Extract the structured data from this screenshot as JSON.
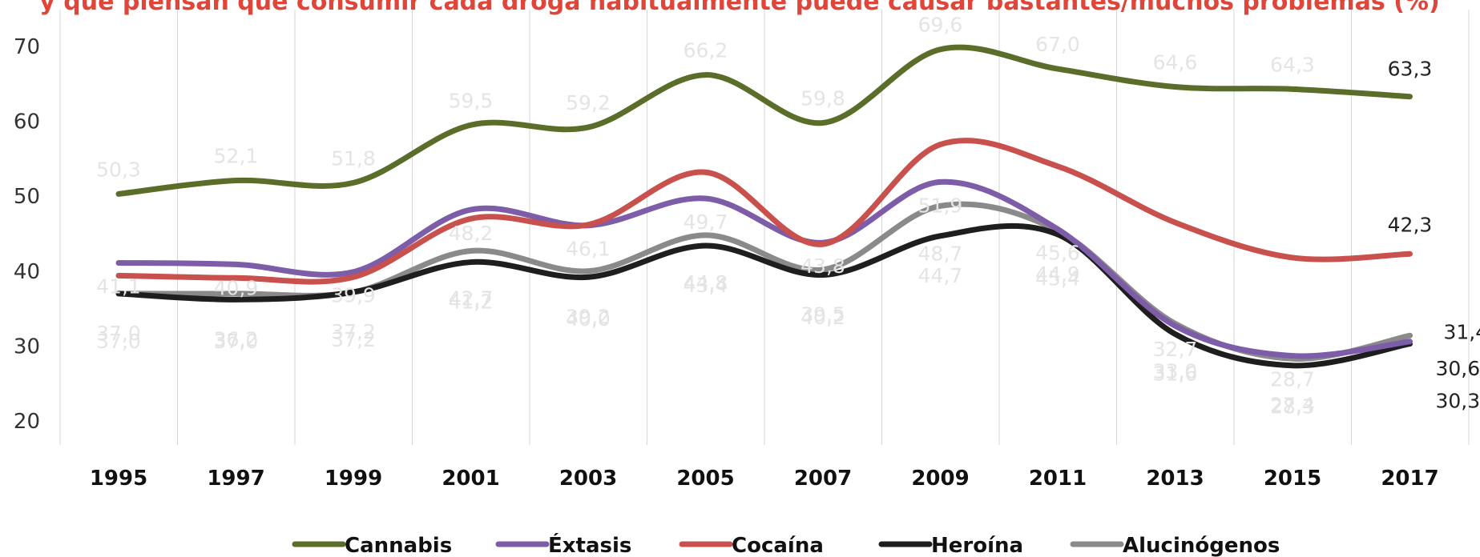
{
  "chart_data": {
    "type": "line",
    "title": "y que piensan que consumir cada droga habitualmente puede causar bastantes/muchos problemas (%)",
    "categories": [
      "1995",
      "1997",
      "1999",
      "2001",
      "2003",
      "2005",
      "2007",
      "2009",
      "2011",
      "2013",
      "2015",
      "2017"
    ],
    "ylim": [
      20,
      70
    ],
    "yticks": [
      "20",
      "30",
      "40",
      "50",
      "60",
      "70"
    ],
    "grid": "vertical",
    "legend_position": "bottom",
    "series": [
      {
        "name": "Cannabis",
        "color": "#5a6e2a",
        "values": [
          50.3,
          52.1,
          51.8,
          59.5,
          59.2,
          66.2,
          59.8,
          69.6,
          67.0,
          64.6,
          64.3,
          63.3
        ],
        "labels": [
          "50,3",
          "52,1",
          "51,8",
          "59,5",
          "59,2",
          "66,2",
          "59,8",
          "69,6",
          "67,0",
          "64,6",
          "64,3",
          "63,3"
        ]
      },
      {
        "name": "Éxtasis",
        "color": "#7d5ca8",
        "values": [
          41.1,
          40.9,
          39.9,
          48.2,
          46.1,
          49.7,
          43.8,
          51.9,
          45.6,
          32.7,
          28.7,
          30.6
        ],
        "labels": [
          "41,1",
          "40,9",
          "39,9",
          "48,2",
          "46,1",
          "49,7",
          "43,8",
          "51,9",
          "45,6",
          "32,7",
          "28,7",
          "30,6"
        ]
      },
      {
        "name": "Cocaína",
        "color": "#c8504d",
        "values": [
          39.4,
          39.1,
          39.2,
          47.0,
          46.2,
          53.2,
          43.6,
          56.9,
          54.0,
          46.5,
          41.8,
          42.3
        ],
        "labels": [
          "",
          "",
          "",
          "",
          "",
          "",
          "",
          "",
          "",
          "",
          "",
          "42,3"
        ]
      },
      {
        "name": "Heroína",
        "color": "#1e1e1e",
        "values": [
          37.0,
          36.2,
          37.2,
          41.2,
          39.2,
          43.4,
          39.5,
          44.7,
          44.9,
          31.6,
          27.4,
          30.3
        ],
        "labels": [
          "37,0",
          "36,2",
          "37,2",
          "41,2",
          "39,2",
          "43,4",
          "39,5",
          "44,7",
          "44,9",
          "31,6",
          "27,4",
          "30,3"
        ]
      },
      {
        "name": "Alucinógenos",
        "color": "#8a8a8a",
        "values": [
          37.0,
          37.0,
          37.2,
          42.7,
          40.0,
          44.8,
          40.2,
          48.7,
          45.4,
          33.0,
          28.3,
          31.4
        ],
        "labels": [
          "37,0",
          "37,0",
          "37,2",
          "42,7",
          "40,0",
          "44,8",
          "40,2",
          "48,7",
          "45,4",
          "33,0",
          "28,3",
          "31,4"
        ]
      }
    ]
  }
}
